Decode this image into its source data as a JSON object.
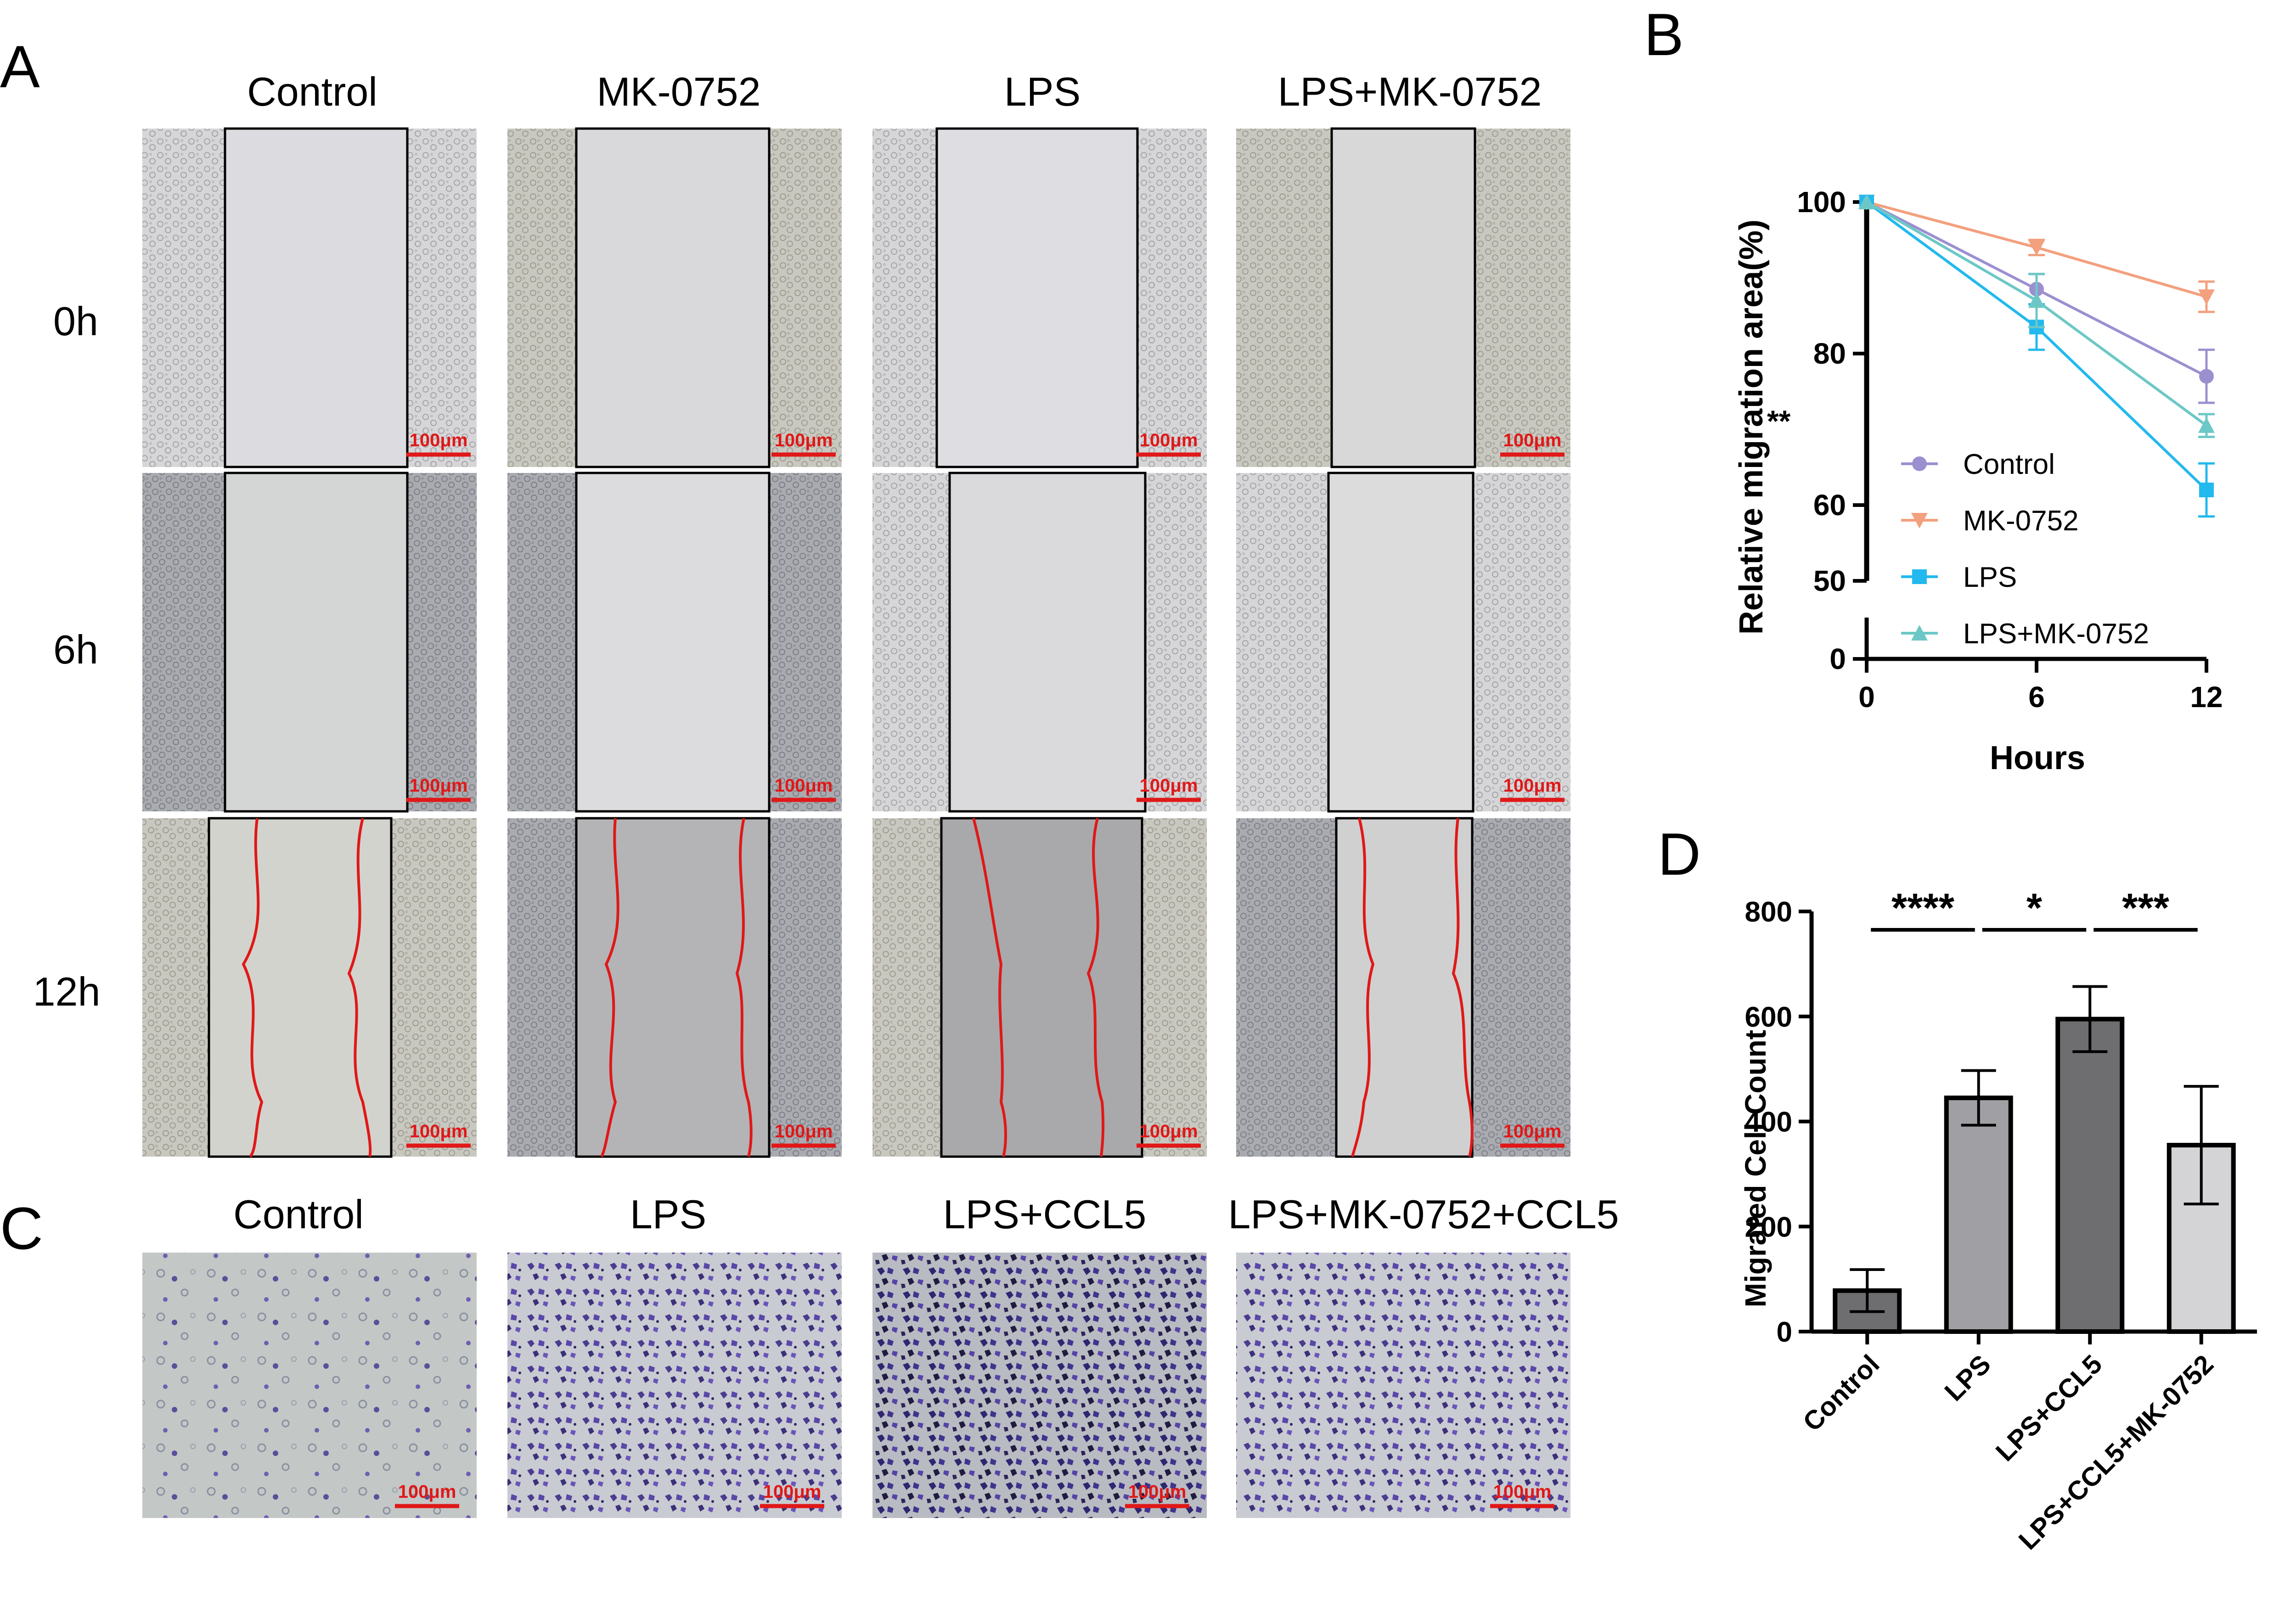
{
  "panels": {
    "a": "A",
    "b": "B",
    "c": "C",
    "d": "D"
  },
  "panel_a": {
    "columns": [
      "Control",
      "MK-0752",
      "LPS",
      "LPS+MK-0752"
    ],
    "rows": [
      "0h",
      "6h",
      "12h"
    ],
    "scale_bar": "100μm"
  },
  "panel_c": {
    "columns": [
      "Control",
      "LPS",
      "LPS+CCL5",
      "LPS+MK-0752+CCL5"
    ],
    "scale_bar": "100μm"
  },
  "colors": {
    "control": "#9c8fd0",
    "mk0752": "#f3a07e",
    "lps": "#22b9ee",
    "lps_mk0752": "#6cc8c6",
    "bar_dark": "#6e6e70",
    "bar_mid": "#a0a0a4",
    "bar_light": "#d4d4d6",
    "scratch_outline": "#e01818"
  },
  "chart_data": [
    {
      "type": "line",
      "xlabel": "Hours",
      "ylabel": "Relative migration area(%)",
      "x": [
        0,
        6,
        12
      ],
      "xticks": [
        "0",
        "6",
        "12"
      ],
      "yticks_upper": [
        "60",
        "80",
        "100"
      ],
      "yticks_lower": [
        "0",
        "50"
      ],
      "ylim": [
        0,
        100
      ],
      "axis_break": [
        50,
        55
      ],
      "legend_position": "bottom-left",
      "series": [
        {
          "name": "Control",
          "values": [
            100,
            88.5,
            77
          ],
          "errors": [
            0,
            2.0,
            3.5
          ],
          "marker": "circle",
          "color": "#9c8fd0"
        },
        {
          "name": "MK-0752",
          "values": [
            100,
            94,
            87.5
          ],
          "errors": [
            0,
            1.0,
            2.0
          ],
          "marker": "triangle-down",
          "color": "#f3a07e"
        },
        {
          "name": "LPS",
          "values": [
            100,
            83.5,
            62
          ],
          "errors": [
            0,
            3.0,
            3.5
          ],
          "marker": "square",
          "color": "#22b9ee"
        },
        {
          "name": "LPS+MK-0752",
          "values": [
            100,
            87,
            70.5
          ],
          "errors": [
            0,
            3.5,
            1.5
          ],
          "marker": "triangle-up",
          "color": "#6cc8c6"
        }
      ],
      "annotations": [
        "**"
      ]
    },
    {
      "type": "bar",
      "ylabel": "Migrated Cell Count",
      "categories": [
        "Control",
        "LPS",
        "LPS+CCL5",
        "LPS+CCL5+MK-0752"
      ],
      "values": [
        78,
        445,
        595,
        355
      ],
      "errors": [
        40,
        52,
        62,
        112
      ],
      "yticks": [
        "0",
        "200",
        "400",
        "600",
        "800"
      ],
      "ylim": [
        0,
        800
      ],
      "significance": [
        {
          "from": 0,
          "to": 1,
          "label": "****"
        },
        {
          "from": 1,
          "to": 2,
          "label": "*"
        },
        {
          "from": 2,
          "to": 3,
          "label": "***"
        }
      ]
    }
  ]
}
